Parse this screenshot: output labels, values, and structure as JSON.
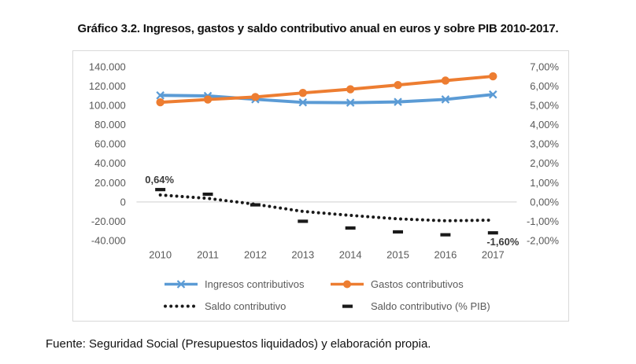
{
  "page": {
    "title": "Gráfico 3.2. Ingresos, gastos y saldo contributivo anual en euros y sobre PIB 2010-2017.",
    "source_note": "Fuente: Seguridad Social (Presupuestos liquidados) y elaboración propia."
  },
  "colors": {
    "ingresos": "#5B9BD5",
    "gastos": "#ED7D31",
    "saldo": "#1a1a1a",
    "saldo_pib": "#1a1a1a",
    "axis_text": "#595959",
    "gridline": "#d9d9d9",
    "chart_border": "#d9d9d9"
  },
  "chart_data": {
    "type": "line",
    "title": "Gráfico 3.2. Ingresos, gastos y saldo contributivo anual en euros y sobre PIB 2010-2017.",
    "categories": [
      "2010",
      "2011",
      "2012",
      "2013",
      "2014",
      "2015",
      "2016",
      "2017"
    ],
    "series": [
      {
        "name": "Ingresos contributivos",
        "axis": "left",
        "style": "solid",
        "marker": "x",
        "color": "#5B9BD5",
        "values": [
          110400,
          109800,
          106300,
          103100,
          102800,
          103600,
          106200,
          111300
        ]
      },
      {
        "name": "Gastos contributivos",
        "axis": "left",
        "style": "solid",
        "marker": "circle",
        "color": "#ED7D31",
        "values": [
          103200,
          106100,
          108700,
          112900,
          116700,
          121100,
          125700,
          130100
        ]
      },
      {
        "name": "Saldo contributivo",
        "axis": "left",
        "style": "dotted",
        "marker": "none",
        "color": "#1a1a1a",
        "values": [
          7200,
          3700,
          -2400,
          -9800,
          -13900,
          -17500,
          -19500,
          -18800
        ]
      },
      {
        "name": "Saldo contributivo (% PIB)",
        "axis": "right",
        "style": "none",
        "marker": "dash",
        "color": "#1a1a1a",
        "values": [
          0.64,
          0.4,
          -0.15,
          -1.0,
          -1.35,
          -1.55,
          -1.7,
          -1.6
        ]
      }
    ],
    "left_axis": {
      "min": -40000,
      "max": 140000,
      "step": 20000,
      "tick_labels": [
        "140.000",
        "120.000",
        "100.000",
        "80.000",
        "60.000",
        "40.000",
        "20.000",
        "0",
        "-20.000",
        "-40.000"
      ]
    },
    "right_axis": {
      "min": -2,
      "max": 7,
      "step": 1,
      "tick_labels": [
        "7,00%",
        "6,00%",
        "5,00%",
        "4,00%",
        "3,00%",
        "2,00%",
        "1,00%",
        "0,00%",
        "-1,00%",
        "-2,00%"
      ]
    },
    "annotations": [
      {
        "text": "0,64%",
        "series": "Saldo contributivo (% PIB)",
        "index": 0,
        "position": "above"
      },
      {
        "text": "-1,60%",
        "series": "Saldo contributivo (% PIB)",
        "index": 7,
        "position": "below-right"
      }
    ],
    "grid": "zero-line-only",
    "legend_position": "bottom"
  }
}
